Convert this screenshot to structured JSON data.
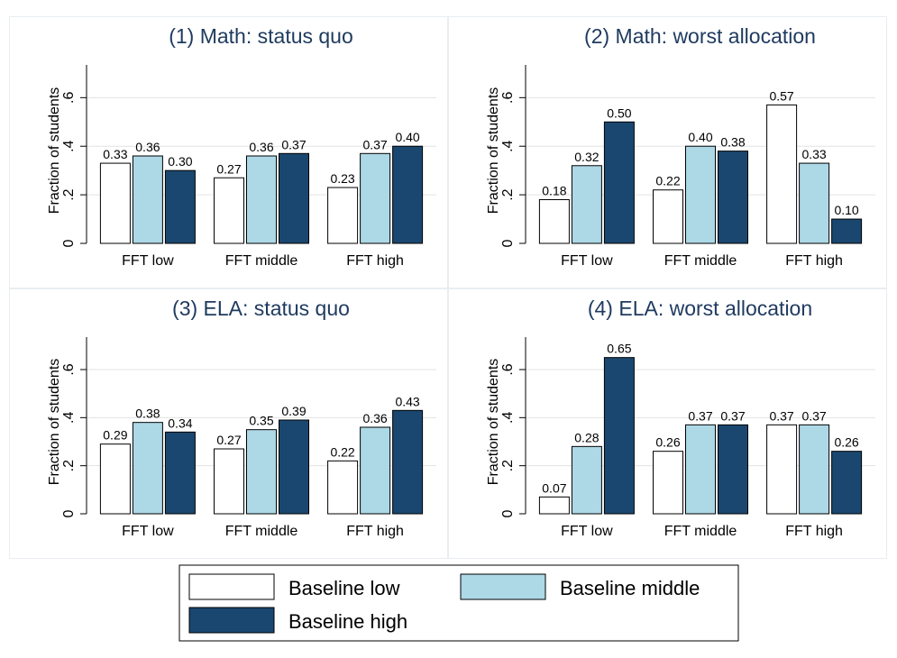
{
  "colors": {
    "baseline_low": "#ffffff",
    "baseline_middle": "#add8e6",
    "baseline_high": "#1a476f",
    "bar_stroke": "#000000",
    "title": "#1e3a5f",
    "grid": "#e3e3e3",
    "panel_border": "#e8edf2"
  },
  "legend": {
    "items": [
      {
        "label": "Baseline low",
        "color": "#ffffff"
      },
      {
        "label": "Baseline middle",
        "color": "#add8e6"
      },
      {
        "label": "Baseline high",
        "color": "#1a476f"
      }
    ]
  },
  "chart_data": [
    {
      "type": "bar",
      "title": "(1) Math: status quo",
      "ylabel": "Fraction of students",
      "ylim": [
        0,
        0.72
      ],
      "yticks": [
        {
          "v": 0,
          "label": "0"
        },
        {
          "v": 0.2,
          "label": ".2"
        },
        {
          "v": 0.4,
          "label": ".4"
        },
        {
          "v": 0.6,
          "label": ".6"
        }
      ],
      "categories": [
        "FFT low",
        "FFT middle",
        "FFT high"
      ],
      "series": [
        {
          "name": "Baseline low",
          "values": [
            0.33,
            0.27,
            0.23
          ],
          "labels": [
            "0.33",
            "0.27",
            "0.23"
          ]
        },
        {
          "name": "Baseline middle",
          "values": [
            0.36,
            0.36,
            0.37
          ],
          "labels": [
            "0.36",
            "0.36",
            "0.37"
          ]
        },
        {
          "name": "Baseline high",
          "values": [
            0.3,
            0.37,
            0.4
          ],
          "labels": [
            "0.30",
            "0.37",
            "0.40"
          ]
        }
      ]
    },
    {
      "type": "bar",
      "title": "(2) Math: worst allocation",
      "ylabel": "Fraction of students",
      "ylim": [
        0,
        0.72
      ],
      "yticks": [
        {
          "v": 0,
          "label": "0"
        },
        {
          "v": 0.2,
          "label": ".2"
        },
        {
          "v": 0.4,
          "label": ".4"
        },
        {
          "v": 0.6,
          "label": ".6"
        }
      ],
      "categories": [
        "FFT low",
        "FFT middle",
        "FFT high"
      ],
      "series": [
        {
          "name": "Baseline low",
          "values": [
            0.18,
            0.22,
            0.57
          ],
          "labels": [
            "0.18",
            "0.22",
            "0.57"
          ]
        },
        {
          "name": "Baseline middle",
          "values": [
            0.32,
            0.4,
            0.33
          ],
          "labels": [
            "0.32",
            "0.40",
            "0.33"
          ]
        },
        {
          "name": "Baseline high",
          "values": [
            0.5,
            0.38,
            0.1
          ],
          "labels": [
            "0.50",
            "0.38",
            "0.10"
          ]
        }
      ]
    },
    {
      "type": "bar",
      "title": "(3) ELA: status quo",
      "ylabel": "Fraction of students",
      "ylim": [
        0,
        0.72
      ],
      "yticks": [
        {
          "v": 0,
          "label": "0"
        },
        {
          "v": 0.2,
          "label": ".2"
        },
        {
          "v": 0.4,
          "label": ".4"
        },
        {
          "v": 0.6,
          "label": ".6"
        }
      ],
      "categories": [
        "FFT low",
        "FFT middle",
        "FFT high"
      ],
      "series": [
        {
          "name": "Baseline low",
          "values": [
            0.29,
            0.27,
            0.22
          ],
          "labels": [
            "0.29",
            "0.27",
            "0.22"
          ]
        },
        {
          "name": "Baseline middle",
          "values": [
            0.38,
            0.35,
            0.36
          ],
          "labels": [
            "0.38",
            "0.35",
            "0.36"
          ]
        },
        {
          "name": "Baseline high",
          "values": [
            0.34,
            0.39,
            0.43
          ],
          "labels": [
            "0.34",
            "0.39",
            "0.43"
          ]
        }
      ]
    },
    {
      "type": "bar",
      "title": "(4) ELA: worst allocation",
      "ylabel": "Fraction of students",
      "ylim": [
        0,
        0.72
      ],
      "yticks": [
        {
          "v": 0,
          "label": "0"
        },
        {
          "v": 0.2,
          "label": ".2"
        },
        {
          "v": 0.4,
          "label": ".4"
        },
        {
          "v": 0.6,
          "label": ".6"
        }
      ],
      "categories": [
        "FFT low",
        "FFT middle",
        "FFT high"
      ],
      "series": [
        {
          "name": "Baseline low",
          "values": [
            0.07,
            0.26,
            0.37
          ],
          "labels": [
            "0.07",
            "0.26",
            "0.37"
          ]
        },
        {
          "name": "Baseline middle",
          "values": [
            0.28,
            0.37,
            0.37
          ],
          "labels": [
            "0.28",
            "0.37",
            "0.37"
          ]
        },
        {
          "name": "Baseline high",
          "values": [
            0.65,
            0.37,
            0.26
          ],
          "labels": [
            "0.65",
            "0.37",
            "0.26"
          ]
        }
      ]
    }
  ]
}
